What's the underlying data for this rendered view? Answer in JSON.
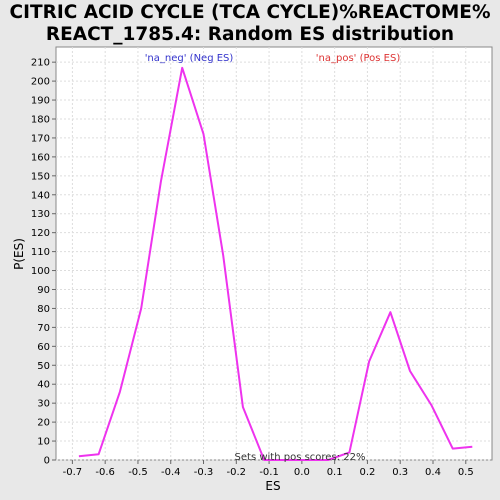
{
  "chart_data": {
    "type": "line",
    "title_lines": [
      "CITRIC ACID CYCLE (TCA CYCLE)%REACTOME%",
      "REACT_1785.4: Random ES distribution"
    ],
    "xlabel": "ES",
    "ylabel": "P(ES)",
    "xlim": [
      -0.75,
      0.58
    ],
    "ylim": [
      0,
      218
    ],
    "xticks": [
      -0.7,
      -0.6,
      -0.5,
      -0.4,
      -0.3,
      -0.2,
      -0.1,
      0.0,
      0.1,
      0.2,
      0.3,
      0.4,
      0.5
    ],
    "xtick_labels": [
      "-0.7",
      "-0.6",
      "-0.5",
      "-0.4",
      "-0.3",
      "-0.2",
      "-0.1",
      "0.0",
      "0.1",
      "0.2",
      "0.3",
      "0.4",
      "0.5"
    ],
    "yticks": [
      0,
      10,
      20,
      30,
      40,
      50,
      60,
      70,
      80,
      90,
      100,
      110,
      120,
      130,
      140,
      150,
      160,
      170,
      180,
      190,
      200,
      210
    ],
    "ytick_labels": [
      "0",
      "10",
      "20",
      "30",
      "40",
      "50",
      "60",
      "70",
      "80",
      "90",
      "100",
      "110",
      "120",
      "130",
      "140",
      "150",
      "160",
      "170",
      "180",
      "190",
      "200",
      "210"
    ],
    "grid": true,
    "series": [
      {
        "color": "#ee33ee",
        "x": [
          -0.68,
          -0.62,
          -0.555,
          -0.49,
          -0.43,
          -0.365,
          -0.3,
          -0.24,
          -0.18,
          -0.115,
          -0.05,
          0.02,
          0.08,
          0.145,
          0.205,
          0.27,
          0.33,
          0.395,
          0.46,
          0.52
        ],
        "y": [
          2,
          3,
          36,
          80,
          147,
          207,
          172,
          108,
          28,
          0,
          0,
          0,
          0,
          4,
          52,
          78,
          47,
          29,
          6,
          7
        ]
      }
    ],
    "legend_neg": {
      "text": "'na_neg' (Neg ES)",
      "color": "#3333cc"
    },
    "legend_pos": {
      "text": "'na_pos' (Pos ES)",
      "color": "#dd3333"
    },
    "note": "Sets with pos scores: 22%"
  }
}
